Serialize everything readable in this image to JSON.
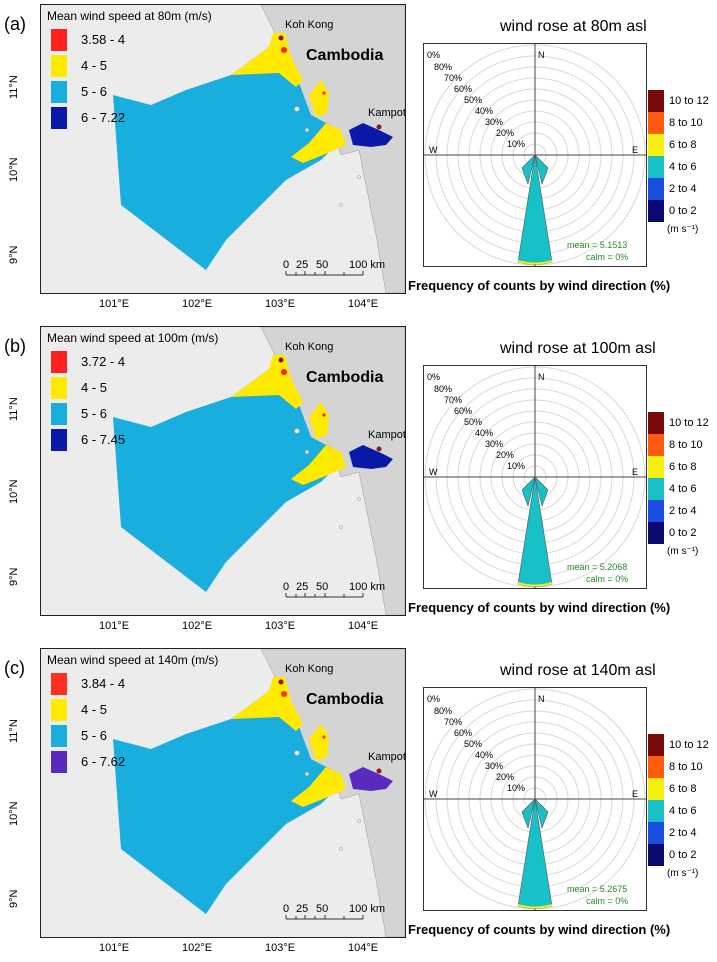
{
  "colors": {
    "sea_blue": "#1aaede",
    "yellow": "#ffea00",
    "red": "#ff2020",
    "dark_blue": "#0a1aa8",
    "purple": "#5a2ac0",
    "land": "#ececec",
    "rose_fill": "#18c0c8"
  },
  "country": "Cambodia",
  "towns": [
    "Koh Kong",
    "Kampot"
  ],
  "scale_labels": [
    "0",
    "25",
    "50",
    "100 km"
  ],
  "lat_labels": [
    "11°N",
    "10°N",
    "9°N"
  ],
  "lon_labels": [
    "101°E",
    "102°E",
    "103°E",
    "104°E"
  ],
  "compass": [
    "N",
    "W",
    "E"
  ],
  "ring_labels": [
    "0%",
    "80%",
    "70%",
    "60%",
    "50%",
    "40%",
    "30%",
    "20%",
    "10%"
  ],
  "frequency_label": "Frequency of counts by wind direction (%)",
  "speed_classes": [
    {
      "label": "10 to 12",
      "color": "#7a0a0a"
    },
    {
      "label": "8 to 10",
      "color": "#ff5a10"
    },
    {
      "label": "6 to 8",
      "color": "#f5f010"
    },
    {
      "label": "4 to 6",
      "color": "#18c0c8"
    },
    {
      "label": "2 to 4",
      "color": "#1a4ee0"
    },
    {
      "label": "0 to 2",
      "color": "#0a0a70"
    }
  ],
  "unit_label": "(m s⁻¹)",
  "panels": [
    {
      "letter": "(a)",
      "legend_title": "Mean wind speed at 80m (m/s)",
      "legend": [
        {
          "label": "3.58 - 4",
          "color": "#ff2020"
        },
        {
          "label": "4 - 5",
          "color": "#ffea00"
        },
        {
          "label": "5 - 6",
          "color": "#1aaede"
        },
        {
          "label": "6 - 7.22",
          "color": "#0a1aa8"
        }
      ],
      "rose_title": "wind rose at 80m asl",
      "mean": "mean = 5.1513",
      "calm": "calm = 0%"
    },
    {
      "letter": "(b)",
      "legend_title": "Mean wind speed at 100m (m/s)",
      "legend": [
        {
          "label": "3.72 - 4",
          "color": "#ff2020"
        },
        {
          "label": "4 - 5",
          "color": "#ffea00"
        },
        {
          "label": "5 - 6",
          "color": "#1aaede"
        },
        {
          "label": "6 - 7.45",
          "color": "#0a1aa8"
        }
      ],
      "rose_title": "wind rose at 100m asl",
      "mean": "mean = 5.2068",
      "calm": "calm = 0%"
    },
    {
      "letter": "(c)",
      "legend_title": "Mean wind speed at 140m (m/s)",
      "legend": [
        {
          "label": "3.84 - 4",
          "color": "#ff3020"
        },
        {
          "label": "4 - 5",
          "color": "#ffea00"
        },
        {
          "label": "5 - 6",
          "color": "#1aaede"
        },
        {
          "label": "6 - 7.62",
          "color": "#5a2ac0"
        }
      ],
      "rose_title": "wind rose at 140m asl",
      "mean": "mean = 5.2675",
      "calm": "calm = 0%"
    }
  ]
}
